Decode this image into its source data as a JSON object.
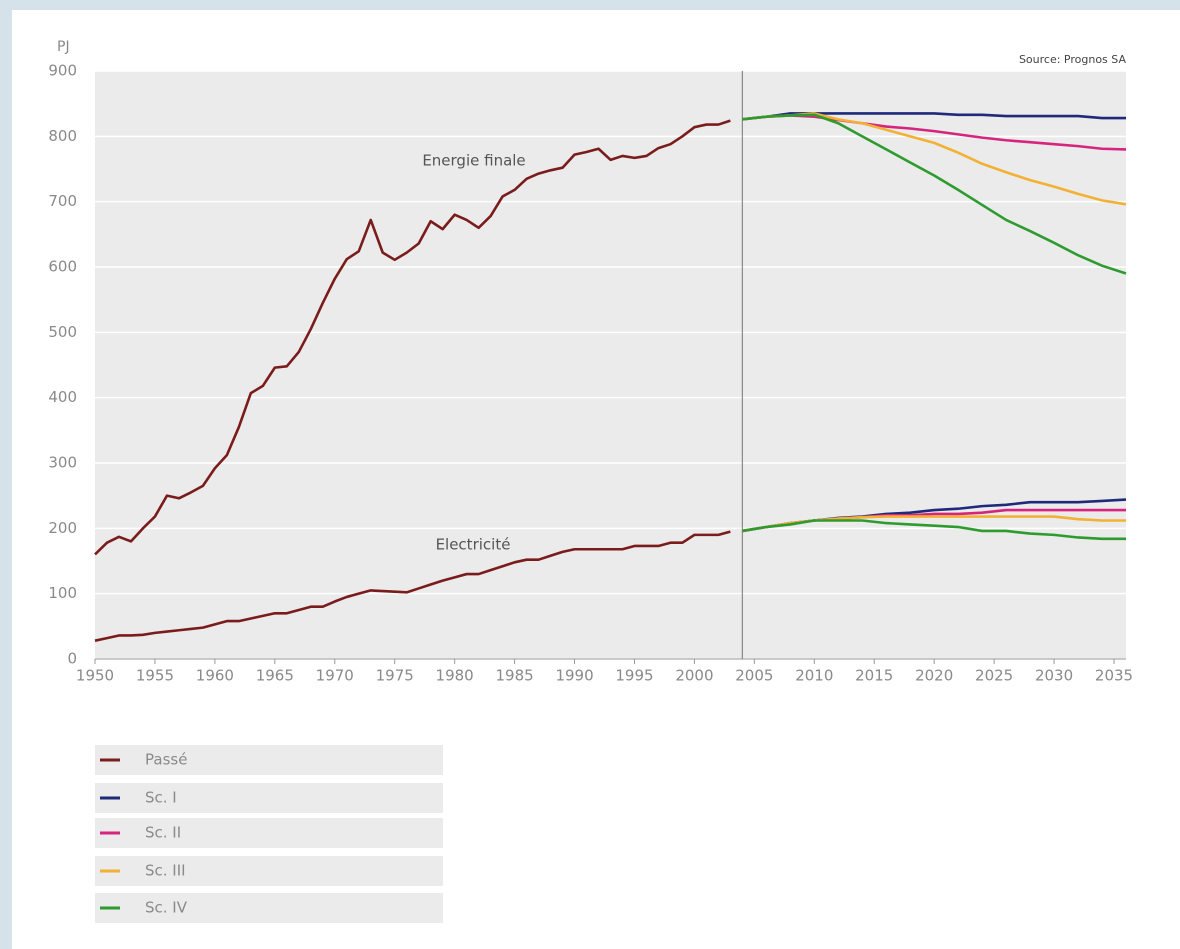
{
  "chart_data": {
    "type": "line",
    "y_unit": "PJ",
    "source": "Source: Prognos SA",
    "annotations": [
      "Energie finale",
      "Electricité"
    ],
    "xlim": [
      1950,
      2036
    ],
    "ylim": [
      0,
      900
    ],
    "xticks": [
      1950,
      1955,
      1960,
      1965,
      1970,
      1975,
      1980,
      1985,
      1990,
      1995,
      2000,
      2005,
      2010,
      2015,
      2020,
      2025,
      2030,
      2035
    ],
    "yticks": [
      0,
      100,
      200,
      300,
      400,
      500,
      600,
      700,
      800,
      900
    ],
    "grid": true,
    "divider": 2004,
    "series": [
      {
        "name": "Passé",
        "color": "#7a1c1c",
        "x": [
          1950,
          1951,
          1952,
          1953,
          1954,
          1955,
          1956,
          1957,
          1958,
          1959,
          1960,
          1961,
          1962,
          1963,
          1964,
          1965,
          1966,
          1967,
          1968,
          1969,
          1970,
          1971,
          1972,
          1973,
          1974,
          1975,
          1976,
          1977,
          1978,
          1979,
          1980,
          1981,
          1982,
          1983,
          1984,
          1985,
          1986,
          1987,
          1988,
          1989,
          1990,
          1991,
          1992,
          1993,
          1994,
          1995,
          1996,
          1997,
          1998,
          1999,
          2000,
          2001,
          2002,
          2003
        ],
        "final": [
          160,
          178,
          187,
          180,
          200,
          218,
          250,
          246,
          255,
          265,
          292,
          312,
          355,
          407,
          418,
          446,
          448,
          470,
          505,
          545,
          582,
          612,
          624,
          672,
          622,
          611,
          622,
          636,
          670,
          658,
          680,
          672,
          660,
          678,
          708,
          718,
          735,
          743,
          748,
          752,
          772,
          776,
          781,
          764,
          770,
          767,
          770,
          782,
          788,
          800,
          814,
          818,
          818,
          824
        ],
        "electricity": [
          28,
          32,
          36,
          36,
          37,
          40,
          42,
          44,
          46,
          48,
          53,
          58,
          58,
          62,
          66,
          70,
          70,
          75,
          80,
          80,
          88,
          95,
          100,
          105,
          104,
          103,
          102,
          108,
          114,
          120,
          125,
          130,
          130,
          136,
          142,
          148,
          152,
          152,
          158,
          164,
          168,
          168,
          168,
          168,
          168,
          173,
          173,
          173,
          178,
          178,
          190,
          190,
          190,
          195
        ]
      },
      {
        "name": "Sc. I",
        "color": "#1f2a7a",
        "x": [
          2004,
          2006,
          2008,
          2010,
          2012,
          2014,
          2016,
          2018,
          2020,
          2022,
          2024,
          2026,
          2028,
          2030,
          2032,
          2034,
          2036
        ],
        "final": [
          826,
          830,
          835,
          835,
          835,
          835,
          835,
          835,
          835,
          833,
          833,
          831,
          831,
          831,
          831,
          828,
          828
        ],
        "electricity": [
          196,
          202,
          208,
          212,
          216,
          218,
          222,
          224,
          228,
          230,
          234,
          236,
          240,
          240,
          240,
          242,
          244
        ]
      },
      {
        "name": "Sc. II",
        "color": "#d6257f",
        "x": [
          2004,
          2006,
          2008,
          2010,
          2012,
          2014,
          2016,
          2018,
          2020,
          2022,
          2024,
          2026,
          2028,
          2030,
          2032,
          2034,
          2036
        ],
        "final": [
          826,
          830,
          832,
          830,
          825,
          820,
          815,
          812,
          808,
          803,
          798,
          794,
          791,
          788,
          785,
          781,
          780
        ],
        "electricity": [
          196,
          202,
          208,
          212,
          215,
          217,
          220,
          220,
          222,
          222,
          224,
          228,
          228,
          228,
          228,
          228,
          228
        ]
      },
      {
        "name": "Sc. III",
        "color": "#f2b134",
        "x": [
          2004,
          2006,
          2008,
          2010,
          2012,
          2014,
          2016,
          2018,
          2020,
          2022,
          2024,
          2026,
          2028,
          2030,
          2032,
          2034,
          2036
        ],
        "final": [
          826,
          830,
          832,
          835,
          826,
          820,
          810,
          800,
          790,
          775,
          758,
          745,
          733,
          723,
          712,
          702,
          696
        ],
        "electricity": [
          196,
          202,
          208,
          212,
          215,
          217,
          218,
          218,
          218,
          218,
          218,
          218,
          218,
          218,
          214,
          212,
          212
        ]
      },
      {
        "name": "Sc. IV",
        "color": "#2e9b2e",
        "x": [
          2004,
          2006,
          2008,
          2010,
          2012,
          2014,
          2016,
          2018,
          2020,
          2022,
          2024,
          2026,
          2028,
          2030,
          2032,
          2034,
          2036
        ],
        "final": [
          826,
          830,
          832,
          833,
          820,
          800,
          780,
          760,
          740,
          718,
          695,
          672,
          655,
          637,
          618,
          602,
          590
        ],
        "electricity": [
          196,
          202,
          206,
          212,
          212,
          212,
          208,
          206,
          204,
          202,
          196,
          196,
          192,
          190,
          186,
          184,
          184
        ]
      }
    ]
  }
}
